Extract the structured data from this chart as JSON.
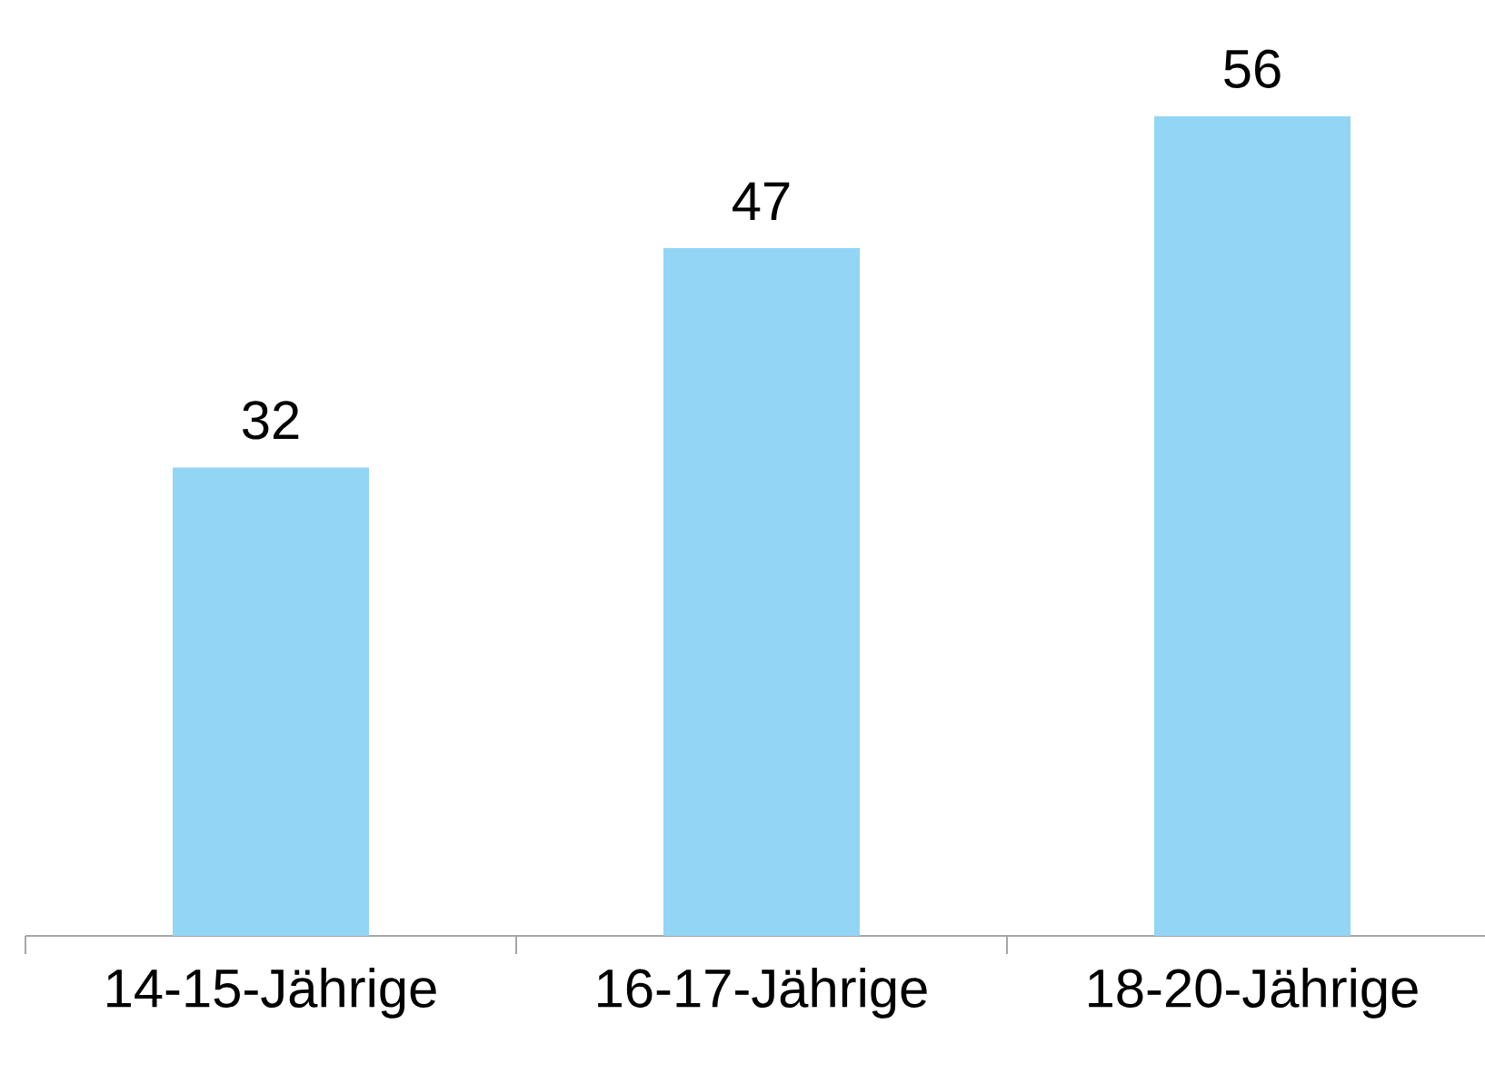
{
  "chart_data": {
    "type": "bar",
    "categories": [
      "14-15-Jährige",
      "16-17-Jährige",
      "18-20-Jährige"
    ],
    "values": [
      32,
      47,
      56
    ],
    "color": "#93d5f5",
    "data_labels": true
  }
}
